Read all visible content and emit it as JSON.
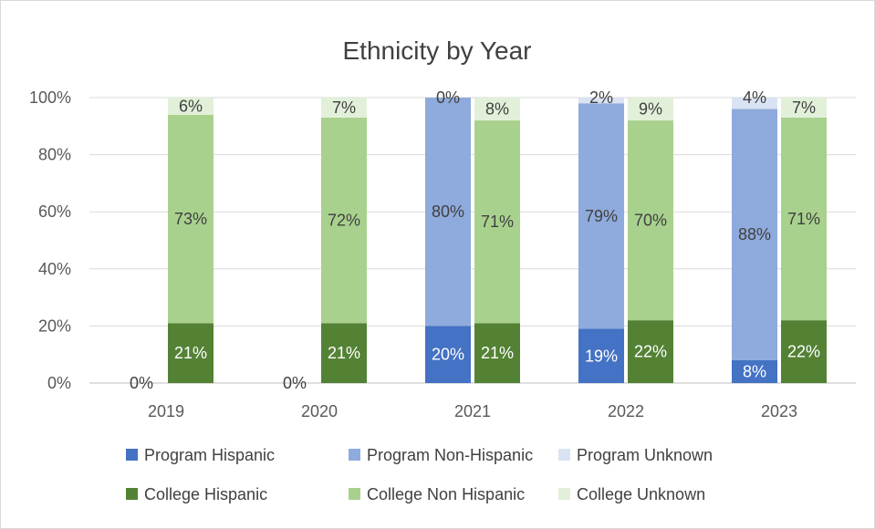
{
  "chart_data": {
    "type": "bar",
    "stacked": true,
    "title": "Ethnicity by Year",
    "categories": [
      "2019",
      "2020",
      "2021",
      "2022",
      "2023"
    ],
    "ylim": [
      0,
      100
    ],
    "yticks": [
      "0%",
      "20%",
      "40%",
      "60%",
      "80%",
      "100%"
    ],
    "grid": true,
    "legend_position": "bottom",
    "groups": [
      {
        "stack": "Program",
        "series": [
          {
            "name": "Program Hispanic",
            "color": "#4472c4",
            "values": [
              0,
              0,
              20,
              19,
              8
            ],
            "labels": [
              "0%",
              "0%",
              "20%",
              "19%",
              "8%"
            ]
          },
          {
            "name": "Program Non-Hispanic",
            "color": "#8faadc",
            "values": [
              0,
              0,
              80,
              79,
              88
            ],
            "labels": [
              "",
              "",
              "80%",
              "79%",
              "88%"
            ]
          },
          {
            "name": "Program Unknown",
            "color": "#dae3f3",
            "values": [
              0,
              0,
              0,
              2,
              4
            ],
            "labels": [
              "",
              "",
              "0%",
              "2%",
              "4%"
            ]
          }
        ]
      },
      {
        "stack": "College",
        "series": [
          {
            "name": "College Hispanic",
            "color": "#548235",
            "values": [
              21,
              21,
              21,
              22,
              22
            ],
            "labels": [
              "21%",
              "21%",
              "21%",
              "22%",
              "22%"
            ]
          },
          {
            "name": "College Non Hispanic",
            "color": "#a9d18e",
            "values": [
              73,
              72,
              71,
              70,
              71
            ],
            "labels": [
              "73%",
              "72%",
              "71%",
              "70%",
              "71%"
            ]
          },
          {
            "name": "College Unknown",
            "color": "#e2f0d9",
            "values": [
              6,
              7,
              8,
              9,
              7
            ],
            "labels": [
              "6%",
              "7%",
              "8%",
              "9%",
              "7%"
            ]
          }
        ]
      }
    ],
    "legend": [
      [
        "Program Hispanic",
        "Program Non-Hispanic",
        "Program Unknown"
      ],
      [
        "College Hispanic",
        "College Non Hispanic",
        "College Unknown"
      ]
    ]
  }
}
